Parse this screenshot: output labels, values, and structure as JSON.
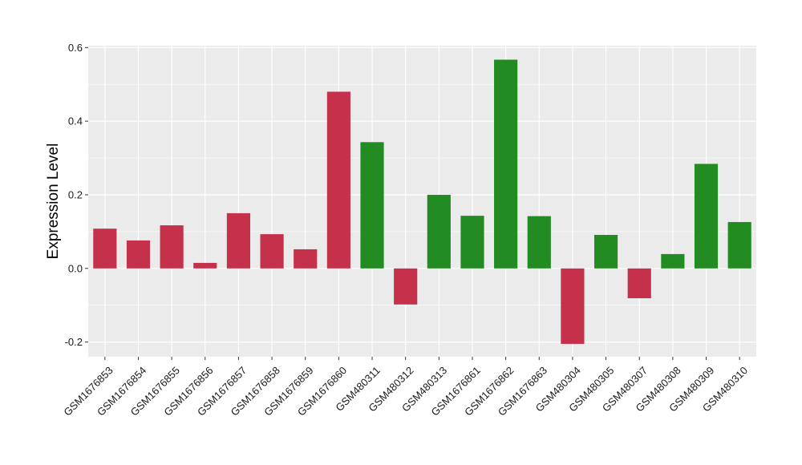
{
  "chart_data": {
    "type": "bar",
    "title": "",
    "xlabel": "",
    "ylabel": "Expression Level",
    "ylim": [
      -0.24,
      0.605
    ],
    "yticks": [
      -0.2,
      0.0,
      0.2,
      0.4,
      0.6
    ],
    "ytick_labels": [
      "-0.2",
      "0.0",
      "0.2",
      "0.4",
      "0.6"
    ],
    "grid": true,
    "legend": "none",
    "background_color": "#ebebeb",
    "grid_color": "#ffffff",
    "categories": [
      "GSM1676853",
      "GSM1676854",
      "GSM1676855",
      "GSM1676856",
      "GSM1676857",
      "GSM1676858",
      "GSM1676859",
      "GSM1676860",
      "GSM480311",
      "GSM480312",
      "GSM480313",
      "GSM1676861",
      "GSM1676862",
      "GSM1676863",
      "GSM480304",
      "GSM480305",
      "GSM480307",
      "GSM480308",
      "GSM480309",
      "GSM480310"
    ],
    "values": [
      0.108,
      0.076,
      0.117,
      0.015,
      0.15,
      0.093,
      0.052,
      0.48,
      0.343,
      -0.098,
      0.2,
      0.143,
      0.567,
      0.142,
      -0.205,
      0.091,
      -0.081,
      0.039,
      0.284,
      0.126
    ],
    "colors": [
      "#c5304a",
      "#c5304a",
      "#c5304a",
      "#c5304a",
      "#c5304a",
      "#c5304a",
      "#c5304a",
      "#c5304a",
      "#228b22",
      "#c5304a",
      "#228b22",
      "#228b22",
      "#228b22",
      "#228b22",
      "#c5304a",
      "#228b22",
      "#c5304a",
      "#228b22",
      "#228b22",
      "#228b22"
    ]
  }
}
